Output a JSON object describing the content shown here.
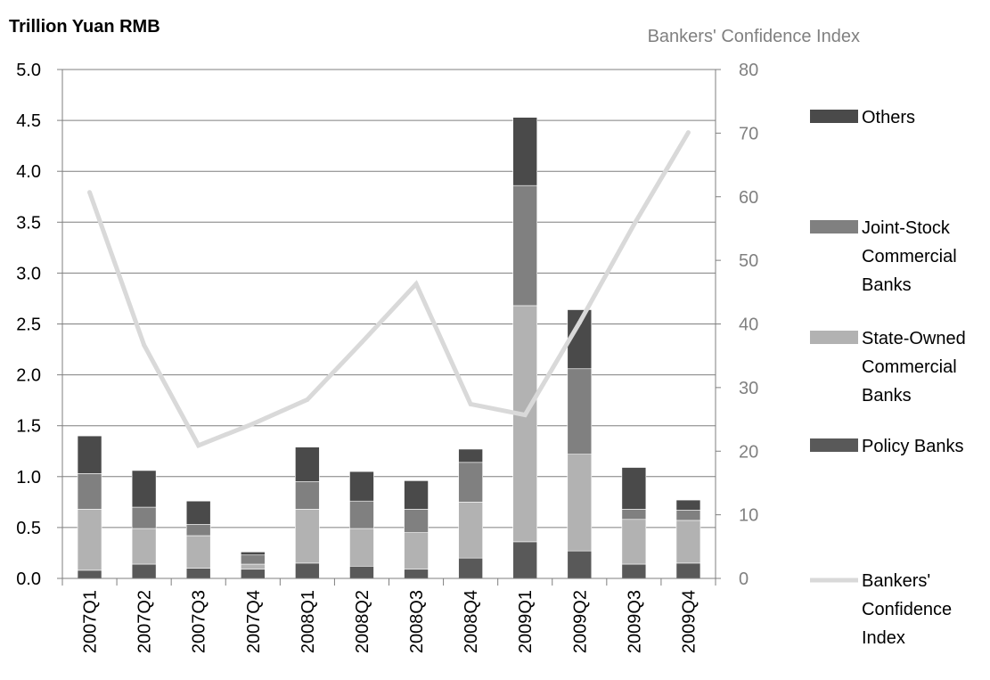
{
  "chart_data": {
    "type": "bar",
    "stacked": true,
    "left_axis_title": "Trillion Yuan RMB",
    "right_axis_title": "Bankers' Confidence Index",
    "categories": [
      "2007Q1",
      "2007Q2",
      "2007Q3",
      "2007Q4",
      "2008Q1",
      "2008Q2",
      "2008Q3",
      "2008Q4",
      "2009Q1",
      "2009Q2",
      "2009Q3",
      "2009Q4"
    ],
    "left_ylim": [
      0,
      5.0
    ],
    "left_ticks": [
      "0.0",
      "0.5",
      "1.0",
      "1.5",
      "2.0",
      "2.5",
      "3.0",
      "3.5",
      "4.0",
      "4.5",
      "5.0"
    ],
    "right_ylim": [
      0,
      80
    ],
    "right_ticks": [
      "0",
      "10",
      "20",
      "30",
      "40",
      "50",
      "60",
      "70",
      "80"
    ],
    "grid": true,
    "legend_position": "right",
    "series": [
      {
        "name": "Policy Banks",
        "color": "#595959",
        "values": [
          0.08,
          0.14,
          0.1,
          0.09,
          0.15,
          0.12,
          0.09,
          0.2,
          0.36,
          0.27,
          0.14,
          0.15
        ]
      },
      {
        "name": "State-Owned Commercial Banks",
        "color": "#b2b2b2",
        "values": [
          0.6,
          0.35,
          0.32,
          0.05,
          0.53,
          0.37,
          0.36,
          0.55,
          2.32,
          0.95,
          0.44,
          0.42
        ]
      },
      {
        "name": "Joint-Stock Commercial Banks",
        "color": "#808080",
        "values": [
          0.35,
          0.21,
          0.11,
          0.09,
          0.27,
          0.27,
          0.23,
          0.39,
          1.18,
          0.84,
          0.1,
          0.1
        ]
      },
      {
        "name": "Others",
        "color": "#4a4a4a",
        "values": [
          0.37,
          0.36,
          0.23,
          0.03,
          0.34,
          0.29,
          0.28,
          0.13,
          0.67,
          0.58,
          0.41,
          0.1
        ]
      }
    ],
    "line_series": {
      "name": "Bankers' Confidence Index",
      "axis": "right",
      "color": "#d9d9d9",
      "values": [
        60.7,
        36.7,
        20.9,
        24.3,
        28.1,
        37.1,
        46.3,
        27.4,
        25.7,
        40.2,
        55.6,
        70.1
      ]
    },
    "legend": [
      {
        "label": "Others",
        "kind": "bar",
        "color": "#4a4a4a"
      },
      {
        "label": "Joint-Stock Commercial Banks",
        "kind": "bar",
        "color": "#808080"
      },
      {
        "label": "State-Owned Commercial Banks",
        "kind": "bar",
        "color": "#b2b2b2"
      },
      {
        "label": "Policy Banks",
        "kind": "bar",
        "color": "#595959"
      },
      {
        "label": "Bankers' Confidence Index",
        "kind": "line",
        "color": "#d9d9d9"
      }
    ]
  }
}
